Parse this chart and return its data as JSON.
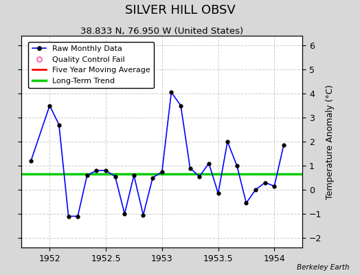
{
  "title": "SILVER HILL OBSV",
  "subtitle": "38.833 N, 76.950 W (United States)",
  "credit": "Berkeley Earth",
  "ylabel": "Temperature Anomaly (°C)",
  "xlim": [
    1951.75,
    1954.25
  ],
  "ylim": [
    -2.4,
    6.4
  ],
  "yticks": [
    -2,
    -1,
    0,
    1,
    2,
    3,
    4,
    5,
    6
  ],
  "xticks": [
    1952,
    1952.5,
    1953,
    1953.5,
    1954
  ],
  "background_color": "#d8d8d8",
  "plot_bg_color": "#ffffff",
  "raw_x": [
    1951.833,
    1952.0,
    1952.083,
    1952.167,
    1952.25,
    1952.333,
    1952.417,
    1952.5,
    1952.583,
    1952.667,
    1952.75,
    1952.833,
    1952.917,
    1953.0,
    1953.083,
    1953.167,
    1953.25,
    1953.333,
    1953.417,
    1953.5,
    1953.583,
    1953.667,
    1953.75,
    1953.833,
    1953.917,
    1954.0,
    1954.083
  ],
  "raw_y": [
    1.2,
    3.5,
    2.7,
    -1.1,
    -1.1,
    0.6,
    0.8,
    0.8,
    0.55,
    -1.0,
    0.6,
    -1.05,
    0.5,
    0.75,
    4.05,
    3.5,
    0.9,
    0.55,
    1.1,
    -0.15,
    2.0,
    1.0,
    -0.55,
    0.0,
    0.3,
    0.15,
    1.85
  ],
  "long_term_y": 0.65,
  "line_color": "#0000ff",
  "marker_color": "#000000",
  "five_year_color": "#ff0000",
  "long_term_color": "#00cc00",
  "grid_color": "#cccccc",
  "title_fontsize": 13,
  "subtitle_fontsize": 9.5,
  "tick_fontsize": 9,
  "label_fontsize": 9,
  "legend_fontsize": 8
}
